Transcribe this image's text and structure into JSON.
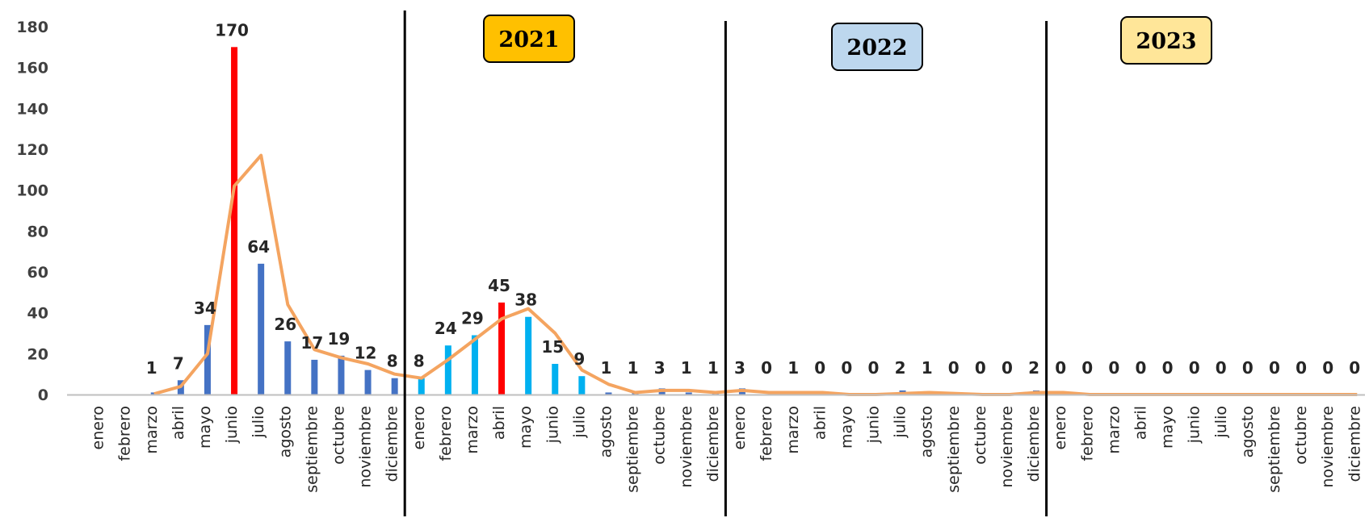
{
  "chart_data": {
    "type": "bar",
    "title": "",
    "xlabel": "",
    "ylabel": "",
    "ylim": [
      0,
      180
    ],
    "yticks": [
      0,
      20,
      40,
      60,
      80,
      100,
      120,
      140,
      160,
      180
    ],
    "grid": false,
    "legend": "none",
    "categories": [
      "enero",
      "febrero",
      "marzo",
      "abril",
      "mayo",
      "junio",
      "julio",
      "agosto",
      "septiembre",
      "octubre",
      "noviembre",
      "diciembre",
      "enero",
      "febrero",
      "marzo",
      "abril",
      "mayo",
      "junio",
      "julio",
      "agosto",
      "septiembre",
      "octubre",
      "noviembre",
      "diciembre",
      "enero",
      "febrero",
      "marzo",
      "abril",
      "mayo",
      "junio",
      "julio",
      "agosto",
      "septiembre",
      "octubre",
      "noviembre",
      "diciembre",
      "enero",
      "febrero",
      "marzo",
      "abril",
      "mayo",
      "junio",
      "julio",
      "agosto",
      "septiembre",
      "octubre",
      "noviembre",
      "diciembre"
    ],
    "values": [
      null,
      null,
      1,
      7,
      34,
      170,
      64,
      26,
      17,
      19,
      12,
      8,
      8,
      24,
      29,
      45,
      38,
      15,
      9,
      1,
      1,
      3,
      1,
      1,
      3,
      0,
      1,
      0,
      0,
      0,
      2,
      1,
      0,
      0,
      0,
      2,
      0,
      0,
      0,
      0,
      0,
      0,
      0,
      0,
      0,
      0,
      0,
      0
    ],
    "data_labels": [
      "",
      "",
      "1",
      "7",
      "34",
      "170",
      "64",
      "26",
      "17",
      "19",
      "12",
      "8",
      "8",
      "24",
      "29",
      "45",
      "38",
      "15",
      "9",
      "1",
      "1",
      "3",
      "1",
      "1",
      "3",
      "0",
      "1",
      "0",
      "0",
      "0",
      "2",
      "1",
      "0",
      "0",
      "0",
      "2",
      "0",
      "0",
      "0",
      "0",
      "0",
      "0",
      "0",
      "0",
      "0",
      "0",
      "0",
      "0"
    ],
    "trend_line": [
      null,
      null,
      0.3,
      4,
      20,
      102,
      117,
      44,
      22,
      18,
      15,
      10,
      8,
      17,
      27,
      37,
      42,
      30,
      12,
      5,
      1,
      2,
      2,
      1,
      2,
      1,
      1,
      1,
      0,
      0,
      0.5,
      1,
      0.5,
      0,
      0,
      1,
      1,
      0,
      0,
      0,
      0,
      0,
      0,
      0,
      0,
      0,
      0,
      0
    ],
    "years": [
      {
        "label": "2021",
        "fill": "#FFC000"
      },
      {
        "label": "2022",
        "fill": "#BDD7EE"
      },
      {
        "label": "2023",
        "fill": "#FFE699"
      }
    ],
    "colors": {
      "bar_2020": "#4472C4",
      "bar_2021": "#00B0F0",
      "highlight": "#FF0000",
      "trend": "#F4A460",
      "divider": "#000000",
      "axis": "#BFBFBF"
    },
    "highlighted_indices": [
      5,
      15
    ]
  }
}
